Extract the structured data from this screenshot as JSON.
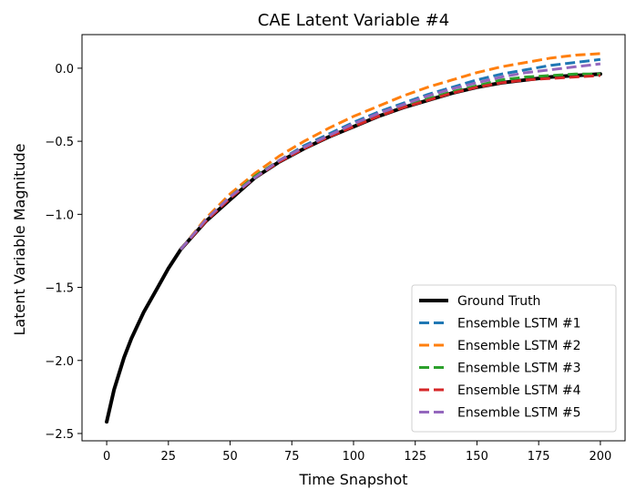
{
  "chart_data": {
    "type": "line",
    "title": "CAE Latent Variable #4",
    "xlabel": "Time Snapshot",
    "ylabel": "Latent Variable Magnitude",
    "xlim": [
      -10,
      210
    ],
    "ylim": [
      -2.55,
      0.23
    ],
    "xticks": [
      0,
      25,
      50,
      75,
      100,
      125,
      150,
      175,
      200
    ],
    "yticks": [
      0.0,
      -0.5,
      -1.0,
      -1.5,
      -2.0,
      -2.5
    ],
    "ytick_labels": [
      "0.0",
      "−0.5",
      "−1.0",
      "−1.5",
      "−2.0",
      "−2.5"
    ],
    "legend_position": "lower-right",
    "series": [
      {
        "name": "Ground Truth",
        "color": "#000000",
        "style": "solid",
        "x": [
          0,
          3,
          7,
          10,
          15,
          20,
          25,
          30,
          40,
          50,
          60,
          70,
          80,
          90,
          100,
          110,
          120,
          130,
          140,
          150,
          160,
          170,
          180,
          190,
          200
        ],
        "y": [
          -2.42,
          -2.2,
          -1.98,
          -1.85,
          -1.67,
          -1.52,
          -1.37,
          -1.24,
          -1.05,
          -0.9,
          -0.75,
          -0.64,
          -0.55,
          -0.47,
          -0.4,
          -0.33,
          -0.27,
          -0.22,
          -0.17,
          -0.13,
          -0.1,
          -0.08,
          -0.06,
          -0.05,
          -0.04
        ]
      },
      {
        "name": "Ensemble LSTM #1",
        "color": "#1f77b4",
        "style": "dashed",
        "x": [
          30,
          40,
          50,
          60,
          70,
          80,
          90,
          100,
          110,
          120,
          130,
          140,
          150,
          160,
          170,
          180,
          190,
          200
        ],
        "y": [
          -1.24,
          -1.04,
          -0.88,
          -0.74,
          -0.63,
          -0.53,
          -0.45,
          -0.37,
          -0.3,
          -0.24,
          -0.18,
          -0.13,
          -0.08,
          -0.04,
          -0.01,
          0.02,
          0.04,
          0.06
        ]
      },
      {
        "name": "Ensemble LSTM #2",
        "color": "#ff7f0e",
        "style": "dashed",
        "x": [
          30,
          40,
          50,
          60,
          70,
          80,
          90,
          100,
          110,
          120,
          130,
          140,
          150,
          160,
          170,
          180,
          190,
          200
        ],
        "y": [
          -1.24,
          -1.03,
          -0.86,
          -0.72,
          -0.6,
          -0.5,
          -0.41,
          -0.33,
          -0.26,
          -0.19,
          -0.13,
          -0.08,
          -0.03,
          0.01,
          0.04,
          0.07,
          0.09,
          0.1
        ]
      },
      {
        "name": "Ensemble LSTM #3",
        "color": "#2ca02c",
        "style": "dashed",
        "x": [
          30,
          40,
          50,
          60,
          70,
          80,
          90,
          100,
          110,
          120,
          130,
          140,
          150,
          160,
          170,
          180,
          190,
          200
        ],
        "y": [
          -1.24,
          -1.04,
          -0.88,
          -0.74,
          -0.63,
          -0.54,
          -0.46,
          -0.39,
          -0.32,
          -0.26,
          -0.21,
          -0.16,
          -0.12,
          -0.08,
          -0.06,
          -0.05,
          -0.04,
          -0.04
        ]
      },
      {
        "name": "Ensemble LSTM #4",
        "color": "#d62728",
        "style": "dashed",
        "x": [
          30,
          40,
          50,
          60,
          70,
          80,
          90,
          100,
          110,
          120,
          130,
          140,
          150,
          160,
          170,
          180,
          190,
          200
        ],
        "y": [
          -1.24,
          -1.05,
          -0.89,
          -0.75,
          -0.64,
          -0.55,
          -0.47,
          -0.4,
          -0.33,
          -0.27,
          -0.22,
          -0.17,
          -0.13,
          -0.1,
          -0.08,
          -0.07,
          -0.06,
          -0.05
        ]
      },
      {
        "name": "Ensemble LSTM #5",
        "color": "#9467bd",
        "style": "dashed",
        "x": [
          30,
          40,
          50,
          60,
          70,
          80,
          90,
          100,
          110,
          120,
          130,
          140,
          150,
          160,
          170,
          180,
          190,
          200
        ],
        "y": [
          -1.24,
          -1.04,
          -0.88,
          -0.75,
          -0.63,
          -0.54,
          -0.46,
          -0.38,
          -0.31,
          -0.25,
          -0.19,
          -0.14,
          -0.1,
          -0.06,
          -0.03,
          -0.01,
          0.01,
          0.03
        ]
      }
    ]
  }
}
